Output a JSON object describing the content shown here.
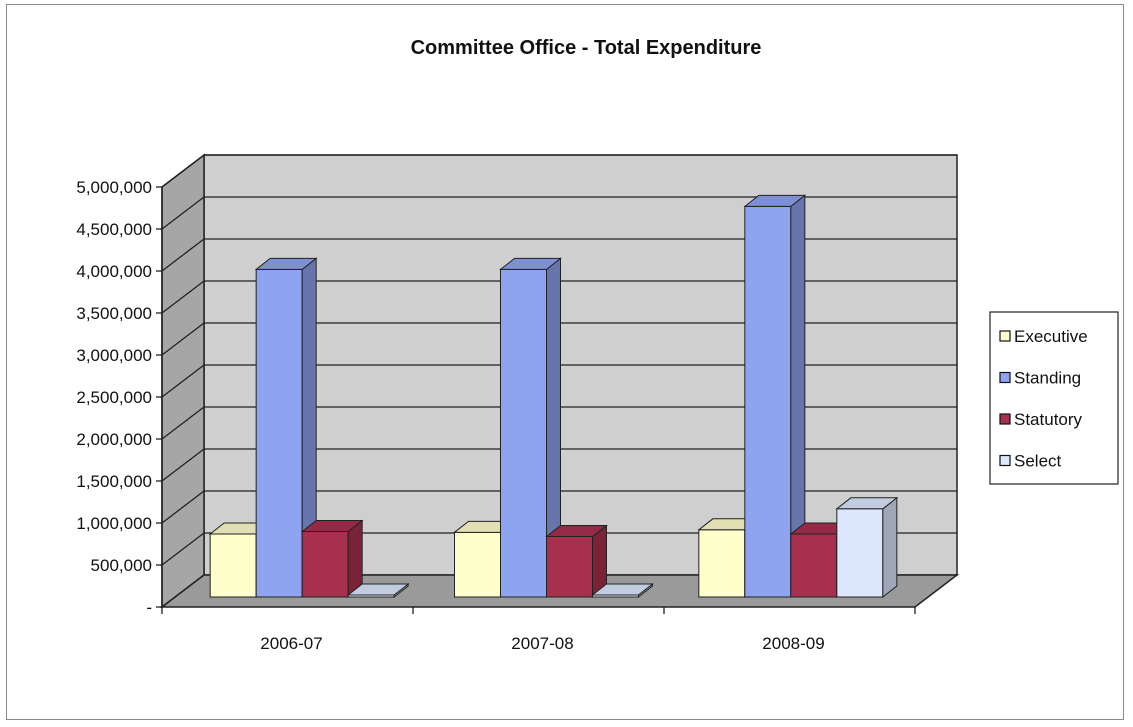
{
  "chart_data": {
    "type": "bar",
    "title": "Committee Office - Total Expenditure",
    "xlabel": "",
    "ylabel": "",
    "categories": [
      "2006-07",
      "2007-08",
      "2008-09"
    ],
    "ylim": [
      0,
      5000000
    ],
    "ytick_labels": [
      "-",
      "500,000",
      "1,000,000",
      "1,500,000",
      "2,000,000",
      "2,500,000",
      "3,000,000",
      "3,500,000",
      "4,000,000",
      "4,500,000",
      "5,000,000"
    ],
    "series": [
      {
        "name": "Executive",
        "values": [
          750000,
          770000,
          800000
        ],
        "color": "#ffffcc"
      },
      {
        "name": "Standing",
        "values": [
          3900000,
          3900000,
          4650000
        ],
        "color": "#8ea4f0"
      },
      {
        "name": "Statutory",
        "values": [
          780000,
          720000,
          750000
        ],
        "color": "#a8304f"
      },
      {
        "name": "Select",
        "values": [
          0,
          0,
          1050000
        ],
        "color": "#dde8ff"
      }
    ],
    "legend_position": "right",
    "grid": true,
    "style": "3d"
  }
}
